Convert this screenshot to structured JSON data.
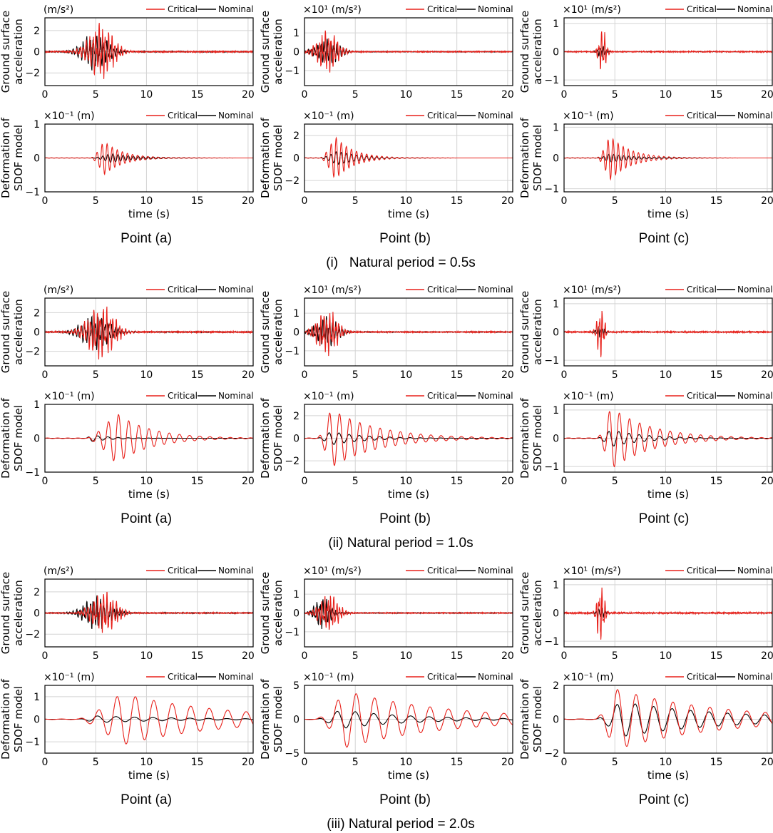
{
  "legend": {
    "critical": "Critical",
    "nominal": "Nominal",
    "critical_color": "#e8201a",
    "nominal_color": "#000000"
  },
  "labels": {
    "acc_ylabel_1": "Ground surface",
    "acc_ylabel_2": "acceleration",
    "def_ylabel_1": "Deformation of",
    "def_ylabel_2": "SDOF model",
    "xlabel": "time (s)",
    "acc_units_plain": "(m/s²)",
    "acc_units_e1": "×10¹ (m/s²)",
    "def_units_em1": "×10⁻¹ (m)"
  },
  "points": [
    "Point (a)",
    "Point (b)",
    "Point (c)"
  ],
  "sections": [
    "(i)   Natural period = 0.5s",
    "(ii) Natural period = 1.0s",
    "(iii) Natural period = 2.0s"
  ],
  "chart_data": [
    {
      "id": "s1-acc-a",
      "type": "line",
      "period": 0.5,
      "kind": "acc",
      "xlim": [
        0,
        20.5
      ],
      "xticks": [
        0,
        5,
        10,
        15,
        20
      ],
      "yticks": [
        -2,
        0,
        2
      ],
      "ylim": [
        -3.2,
        3.2
      ],
      "units": "(m/s²)",
      "series": [
        {
          "name": "Critical",
          "center": 5.5,
          "width": 1.6,
          "amp": 2.5,
          "freq": 3.2
        },
        {
          "name": "Nominal",
          "center": 5.0,
          "width": 1.7,
          "amp": 1.7,
          "freq": 3.0
        }
      ]
    },
    {
      "id": "s1-acc-b",
      "type": "line",
      "period": 0.5,
      "kind": "acc",
      "xlim": [
        0,
        20.5
      ],
      "xticks": [
        0,
        5,
        10,
        15,
        20
      ],
      "yticks": [
        -1,
        0,
        1
      ],
      "ylim": [
        -1.8,
        1.8
      ],
      "units": "×10¹ (m/s²)",
      "series": [
        {
          "name": "Critical",
          "center": 2.3,
          "width": 1.3,
          "amp": 1.1,
          "freq": 3.4
        },
        {
          "name": "Nominal",
          "center": 2.3,
          "width": 1.4,
          "amp": 0.7,
          "freq": 3.2
        }
      ]
    },
    {
      "id": "s1-acc-c",
      "type": "line",
      "period": 0.5,
      "kind": "acc",
      "xlim": [
        0,
        20.5
      ],
      "xticks": [
        0,
        5,
        10,
        15,
        20
      ],
      "yticks": [
        -1,
        0,
        1
      ],
      "ylim": [
        -1.2,
        1.2
      ],
      "units": "×10¹ (m/s²)",
      "series": [
        {
          "name": "Critical",
          "center": 3.8,
          "width": 0.45,
          "amp": 0.8,
          "freq": 3.5
        },
        {
          "name": "Nominal",
          "center": 3.7,
          "width": 0.5,
          "amp": 0.2,
          "freq": 3.3
        }
      ]
    },
    {
      "id": "s1-def-a",
      "type": "line",
      "period": 0.5,
      "kind": "def",
      "xlim": [
        0,
        20.5
      ],
      "xticks": [
        0,
        5,
        10,
        15,
        20
      ],
      "yticks": [
        -1,
        0,
        1
      ],
      "ylim": [
        -1,
        1
      ],
      "units": "×10⁻¹ (m)",
      "series": [
        {
          "name": "Critical",
          "onset": 4.5,
          "peak": 5.8,
          "decay": 0.55,
          "amp": 0.5,
          "freq": 2.0
        },
        {
          "name": "Nominal",
          "onset": 4.6,
          "peak": 6.5,
          "decay": 0.4,
          "amp": 0.14,
          "freq": 2.0
        }
      ]
    },
    {
      "id": "s1-def-b",
      "type": "line",
      "period": 0.5,
      "kind": "def",
      "xlim": [
        0,
        20.5
      ],
      "xticks": [
        0,
        5,
        10,
        15,
        20
      ],
      "yticks": [
        -2,
        0,
        2
      ],
      "ylim": [
        -3,
        3
      ],
      "units": "×10⁻¹ (m)",
      "series": [
        {
          "name": "Critical",
          "onset": 1.5,
          "peak": 3.0,
          "decay": 0.55,
          "amp": 1.9,
          "freq": 2.0
        },
        {
          "name": "Nominal",
          "onset": 1.5,
          "peak": 3.2,
          "decay": 0.45,
          "amp": 0.6,
          "freq": 2.0
        }
      ]
    },
    {
      "id": "s1-def-c",
      "type": "line",
      "period": 0.5,
      "kind": "def",
      "xlim": [
        0,
        20.5
      ],
      "xticks": [
        0,
        5,
        10,
        15,
        20
      ],
      "yticks": [
        -1,
        0,
        1
      ],
      "ylim": [
        -1.1,
        1.1
      ],
      "units": "×10⁻¹ (m)",
      "series": [
        {
          "name": "Critical",
          "onset": 3.2,
          "peak": 4.5,
          "decay": 0.5,
          "amp": 0.72,
          "freq": 2.0
        },
        {
          "name": "Nominal",
          "onset": 3.3,
          "peak": 4.5,
          "decay": 0.4,
          "amp": 0.14,
          "freq": 2.0
        }
      ]
    },
    {
      "id": "s2-acc-a",
      "type": "line",
      "period": 1.0,
      "kind": "acc",
      "xlim": [
        0,
        20.5
      ],
      "xticks": [
        0,
        5,
        10,
        15,
        20
      ],
      "yticks": [
        -2,
        0,
        2
      ],
      "ylim": [
        -3.5,
        3.5
      ],
      "units": "(m/s²)",
      "series": [
        {
          "name": "Critical",
          "center": 5.5,
          "width": 1.7,
          "amp": 2.7,
          "freq": 3.2
        },
        {
          "name": "Nominal",
          "center": 5.0,
          "width": 1.8,
          "amp": 1.8,
          "freq": 3.0
        }
      ]
    },
    {
      "id": "s2-acc-b",
      "type": "line",
      "period": 1.0,
      "kind": "acc",
      "xlim": [
        0,
        20.5
      ],
      "xticks": [
        0,
        5,
        10,
        15,
        20
      ],
      "yticks": [
        -1,
        0,
        1
      ],
      "ylim": [
        -1.8,
        1.8
      ],
      "units": "×10¹ (m/s²)",
      "series": [
        {
          "name": "Critical",
          "center": 2.2,
          "width": 1.3,
          "amp": 1.2,
          "freq": 3.4
        },
        {
          "name": "Nominal",
          "center": 2.2,
          "width": 1.4,
          "amp": 0.75,
          "freq": 3.2
        }
      ]
    },
    {
      "id": "s2-acc-c",
      "type": "line",
      "period": 1.0,
      "kind": "acc",
      "xlim": [
        0,
        20.5
      ],
      "xticks": [
        0,
        5,
        10,
        15,
        20
      ],
      "yticks": [
        -1,
        0,
        1
      ],
      "ylim": [
        -1.2,
        1.2
      ],
      "units": "×10¹ (m/s²)",
      "series": [
        {
          "name": "Critical",
          "center": 3.6,
          "width": 0.45,
          "amp": 0.95,
          "freq": 3.5
        },
        {
          "name": "Nominal",
          "center": 3.6,
          "width": 0.5,
          "amp": 0.2,
          "freq": 3.3
        }
      ]
    },
    {
      "id": "s2-def-a",
      "type": "line",
      "period": 1.0,
      "kind": "def",
      "xlim": [
        0,
        20.5
      ],
      "xticks": [
        0,
        5,
        10,
        15,
        20
      ],
      "yticks": [
        -1,
        0,
        1
      ],
      "ylim": [
        -1,
        1
      ],
      "units": "×10⁻¹ (m)",
      "series": [
        {
          "name": "Critical",
          "onset": 4.0,
          "peak": 7.0,
          "decay": 0.3,
          "amp": 0.75,
          "freq": 1.0
        },
        {
          "name": "Nominal",
          "onset": 4.0,
          "peak": 4.5,
          "decay": 0.5,
          "amp": 0.1,
          "freq": 1.0
        }
      ]
    },
    {
      "id": "s2-def-b",
      "type": "line",
      "period": 1.0,
      "kind": "def",
      "xlim": [
        0,
        20.5
      ],
      "xticks": [
        0,
        5,
        10,
        15,
        20
      ],
      "yticks": [
        -2,
        0,
        2
      ],
      "ylim": [
        -3,
        3
      ],
      "units": "×10⁻¹ (m)",
      "series": [
        {
          "name": "Critical",
          "onset": 1.2,
          "peak": 2.6,
          "decay": 0.22,
          "amp": 2.6,
          "freq": 1.0
        },
        {
          "name": "Nominal",
          "onset": 1.2,
          "peak": 2.6,
          "decay": 0.3,
          "amp": 0.6,
          "freq": 1.0
        }
      ]
    },
    {
      "id": "s2-def-c",
      "type": "line",
      "period": 1.0,
      "kind": "def",
      "xlim": [
        0,
        20.5
      ],
      "xticks": [
        0,
        5,
        10,
        15,
        20
      ],
      "yticks": [
        -1,
        0,
        1
      ],
      "ylim": [
        -1.2,
        1.2
      ],
      "units": "×10⁻¹ (m)",
      "series": [
        {
          "name": "Critical",
          "onset": 3.2,
          "peak": 4.6,
          "decay": 0.25,
          "amp": 1.1,
          "freq": 1.0
        },
        {
          "name": "Nominal",
          "onset": 3.2,
          "peak": 4.6,
          "decay": 0.3,
          "amp": 0.3,
          "freq": 1.0
        }
      ]
    },
    {
      "id": "s3-acc-a",
      "type": "line",
      "period": 2.0,
      "kind": "acc",
      "xlim": [
        0,
        20.5
      ],
      "xticks": [
        0,
        5,
        10,
        15,
        20
      ],
      "yticks": [
        -2,
        0,
        2
      ],
      "ylim": [
        -3.2,
        3.2
      ],
      "units": "(m/s²)",
      "series": [
        {
          "name": "Critical",
          "center": 5.8,
          "width": 1.6,
          "amp": 1.9,
          "freq": 3.2
        },
        {
          "name": "Nominal",
          "center": 5.2,
          "width": 1.7,
          "amp": 1.6,
          "freq": 3.0
        }
      ]
    },
    {
      "id": "s3-acc-b",
      "type": "line",
      "period": 2.0,
      "kind": "acc",
      "xlim": [
        0,
        20.5
      ],
      "xticks": [
        0,
        5,
        10,
        15,
        20
      ],
      "yticks": [
        -1,
        0,
        1
      ],
      "ylim": [
        -1.8,
        1.8
      ],
      "units": "×10¹ (m/s²)",
      "series": [
        {
          "name": "Critical",
          "center": 2.4,
          "width": 1.2,
          "amp": 1.0,
          "freq": 3.4
        },
        {
          "name": "Nominal",
          "center": 1.8,
          "width": 1.0,
          "amp": 0.8,
          "freq": 3.2
        }
      ]
    },
    {
      "id": "s3-acc-c",
      "type": "line",
      "period": 2.0,
      "kind": "acc",
      "xlim": [
        0,
        20.5
      ],
      "xticks": [
        0,
        5,
        10,
        15,
        20
      ],
      "yticks": [
        -1,
        0,
        1
      ],
      "ylim": [
        -1.2,
        1.2
      ],
      "units": "×10¹ (m/s²)",
      "series": [
        {
          "name": "Critical",
          "center": 3.6,
          "width": 0.45,
          "amp": 1.05,
          "freq": 3.5
        },
        {
          "name": "Nominal",
          "center": 3.6,
          "width": 0.5,
          "amp": 0.2,
          "freq": 3.3
        }
      ]
    },
    {
      "id": "s3-def-a",
      "type": "line",
      "period": 2.0,
      "kind": "def",
      "xlim": [
        0,
        20.5
      ],
      "xticks": [
        0,
        5,
        10,
        15,
        20
      ],
      "yticks": [
        -1,
        0,
        1
      ],
      "ylim": [
        -1.5,
        1.5
      ],
      "units": "×10⁻¹ (m)",
      "series": [
        {
          "name": "Critical",
          "onset": 3.0,
          "peak": 7.5,
          "decay": 0.1,
          "amp": 1.15,
          "freq": 0.55
        },
        {
          "name": "Nominal",
          "onset": 3.0,
          "peak": 5.0,
          "decay": 0.12,
          "amp": 0.15,
          "freq": 0.55
        }
      ]
    },
    {
      "id": "s3-def-b",
      "type": "line",
      "period": 2.0,
      "kind": "def",
      "xlim": [
        0,
        20.5
      ],
      "xticks": [
        0,
        5,
        10,
        15,
        20
      ],
      "yticks": [
        -5,
        0,
        5
      ],
      "ylim": [
        -5,
        5
      ],
      "units": "×10⁻¹ (m)",
      "series": [
        {
          "name": "Critical",
          "onset": 1.0,
          "peak": 4.0,
          "decay": 0.1,
          "amp": 4.2,
          "freq": 0.55
        },
        {
          "name": "Nominal",
          "onset": 1.0,
          "peak": 3.5,
          "decay": 0.15,
          "amp": 1.4,
          "freq": 0.55
        }
      ]
    },
    {
      "id": "s3-def-c",
      "type": "line",
      "period": 2.0,
      "kind": "def",
      "xlim": [
        0,
        20.5
      ],
      "xticks": [
        0,
        5,
        10,
        15,
        20
      ],
      "yticks": [
        -2,
        0,
        2
      ],
      "ylim": [
        -2,
        2
      ],
      "units": "×10⁻¹ (m)",
      "series": [
        {
          "name": "Critical",
          "onset": 3.0,
          "peak": 5.0,
          "decay": 0.1,
          "amp": 1.8,
          "freq": 0.55
        },
        {
          "name": "Nominal",
          "onset": 3.0,
          "peak": 5.5,
          "decay": 0.1,
          "amp": 1.05,
          "freq": 0.55
        }
      ]
    }
  ]
}
